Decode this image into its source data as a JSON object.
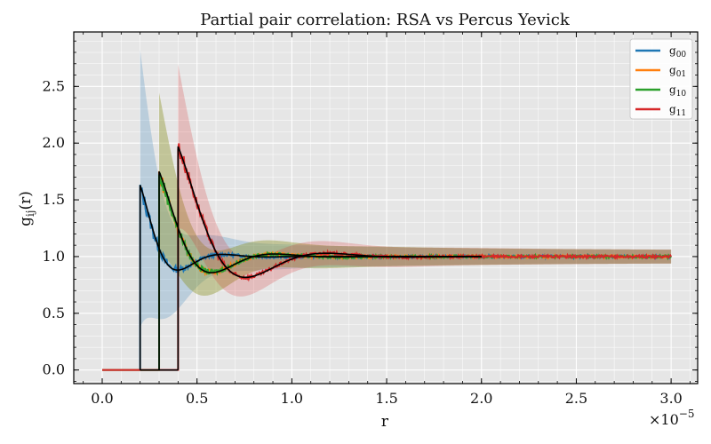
{
  "chart_data": {
    "type": "line",
    "title": "Partial pair correlation: RSA vs Percus Yevick",
    "xlabel": "r",
    "ylabel": "g_ij(r)",
    "ylabel_main": "g",
    "ylabel_sub": "ij",
    "ylabel_suffix": "(r)",
    "x_multiplier_base": "×10",
    "x_multiplier_exp": "−5",
    "xlim": [
      -0.15,
      3.14
    ],
    "ylim": [
      -0.12,
      2.98
    ],
    "xticks": [
      0.0,
      0.5,
      1.0,
      1.5,
      2.0,
      2.5,
      3.0
    ],
    "xtick_labels": [
      "0.0",
      "0.5",
      "1.0",
      "1.5",
      "2.0",
      "2.5",
      "3.0"
    ],
    "yticks": [
      0.0,
      0.5,
      1.0,
      1.5,
      2.0,
      2.5
    ],
    "ytick_labels": [
      "0.0",
      "0.5",
      "1.0",
      "1.5",
      "2.0",
      "2.5"
    ],
    "grid": true,
    "legend_position": "top-right",
    "series": [
      {
        "name": "g00",
        "label_main": "g",
        "label_sub": "00",
        "color": "#1f77b4",
        "contact": 0.2,
        "peak": 1.6,
        "band": 1.05,
        "x_end": 3.0
      },
      {
        "name": "g01",
        "label_main": "g",
        "label_sub": "01",
        "color": "#ff7f0e",
        "contact": 0.3,
        "peak": 1.72,
        "band": 0.55,
        "x_end": 3.0
      },
      {
        "name": "g10",
        "label_main": "g",
        "label_sub": "10",
        "color": "#2ca02c",
        "contact": 0.3,
        "peak": 1.72,
        "band": 0.55,
        "x_end": 3.0
      },
      {
        "name": "g11",
        "label_main": "g",
        "label_sub": "11",
        "color": "#d62728",
        "contact": 0.4,
        "peak": 1.97,
        "band": 0.55,
        "x_end": 3.0
      }
    ],
    "reference_curves": [
      {
        "color": "#000000",
        "contact": 0.2,
        "peak": 1.63,
        "x_end": 2.0
      },
      {
        "color": "#000000",
        "contact": 0.3,
        "peak": 1.75,
        "x_end": 2.0
      },
      {
        "color": "#000000",
        "contact": 0.4,
        "peak": 1.97,
        "x_end": 2.0
      }
    ]
  }
}
